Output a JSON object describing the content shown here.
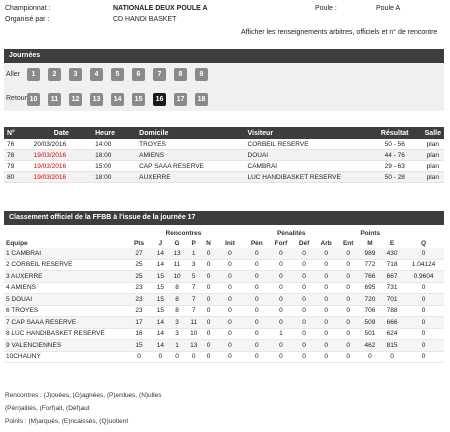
{
  "header": {
    "championnat_label": "Championnat :",
    "championnat_value": "NATIONALE DEUX POULE A",
    "organise_label": "Organisé par :",
    "organise_value": "CD HANDI BASKET",
    "poule_label": "Poule :",
    "poule_value": "Poule A",
    "link_text": "Afficher les renseignements arbitres, officiels et n° de rencontre"
  },
  "journees": {
    "title": "Journées",
    "aller_label": "Aller",
    "retour_label": "Retour",
    "aller": [
      "1",
      "2",
      "3",
      "4",
      "5",
      "6",
      "7",
      "8",
      "9"
    ],
    "retour": [
      "10",
      "11",
      "12",
      "13",
      "14",
      "15",
      "16",
      "17",
      "18"
    ],
    "active": "16"
  },
  "matches": {
    "headers": [
      "N°",
      "Date",
      "Heure",
      "Domicile",
      "Visiteur",
      "Résultat",
      "Salle"
    ],
    "rows": [
      {
        "num": "76",
        "date": "20/03/2016",
        "heure": "14:00",
        "domicile": "TROYES",
        "visiteur": "CORBEIL RESERVE",
        "resultat": "50 - 56",
        "salle": "plan",
        "red": false
      },
      {
        "num": "78",
        "date": "19/03/2016",
        "heure": "18:00",
        "domicile": "AMIENS",
        "visiteur": "DOUAI",
        "resultat": "44 - 76",
        "salle": "plan",
        "red": true
      },
      {
        "num": "79",
        "date": "19/03/2016",
        "heure": "15:00",
        "domicile": "CAP SAAA RESERVE",
        "visiteur": "CAMBRAI",
        "resultat": "29 - 63",
        "salle": "plan",
        "red": true
      },
      {
        "num": "80",
        "date": "19/03/2016",
        "heure": "18:00",
        "domicile": "AUXERRE",
        "visiteur": "LUC HANDIBASKET RESERVE",
        "resultat": "50 - 28",
        "salle": "plan",
        "red": true
      }
    ]
  },
  "classement": {
    "title": "Classement officiel de la FFBB à l'issue de la journée 17",
    "group_headers": {
      "rencontres": "Rencontres",
      "penalites": "Pénalités",
      "points": "Points"
    },
    "headers": [
      "Equipe",
      "Pts",
      "J",
      "G",
      "P",
      "N",
      "Init",
      "Pén",
      "Forf",
      "Déf",
      "Arb",
      "Ent",
      "M",
      "E",
      "Q"
    ],
    "rows": [
      [
        "1 CAMBRAI",
        "27",
        "14",
        "13",
        "1",
        "0",
        "0",
        "0",
        "0",
        "0",
        "0",
        "0",
        "989",
        "430",
        "0"
      ],
      [
        "2 CORBEIL RESERVE",
        "25",
        "14",
        "11",
        "3",
        "0",
        "0",
        "0",
        "0",
        "0",
        "0",
        "0",
        "772",
        "718",
        "1.04124"
      ],
      [
        "3 AUXERRE",
        "25",
        "15",
        "10",
        "5",
        "0",
        "0",
        "0",
        "0",
        "0",
        "0",
        "0",
        "766",
        "667",
        "0.9604"
      ],
      [
        "4 AMIENS",
        "23",
        "15",
        "8",
        "7",
        "0",
        "0",
        "0",
        "0",
        "0",
        "0",
        "0",
        "695",
        "731",
        "0"
      ],
      [
        "5 DOUAI",
        "23",
        "15",
        "8",
        "7",
        "0",
        "0",
        "0",
        "0",
        "0",
        "0",
        "0",
        "720",
        "701",
        "0"
      ],
      [
        "6 TROYES",
        "23",
        "15",
        "8",
        "7",
        "0",
        "0",
        "0",
        "0",
        "0",
        "0",
        "0",
        "706",
        "788",
        "0"
      ],
      [
        "7 CAP SAAA RESERVE",
        "17",
        "14",
        "3",
        "11",
        "0",
        "0",
        "0",
        "0",
        "0",
        "0",
        "0",
        "509",
        "666",
        "0"
      ],
      [
        "8 LUC HANDIBASKET RESERVE",
        "16",
        "14",
        "3",
        "10",
        "0",
        "0",
        "0",
        "1",
        "0",
        "0",
        "0",
        "501",
        "624",
        "0"
      ],
      [
        "9 VALENCIENNES",
        "15",
        "14",
        "1",
        "13",
        "0",
        "0",
        "0",
        "0",
        "0",
        "0",
        "0",
        "462",
        "815",
        "0"
      ],
      [
        "10CHAUNY",
        "0",
        "0",
        "0",
        "0",
        "0",
        "0",
        "0",
        "0",
        "0",
        "0",
        "0",
        "0",
        "0",
        "0"
      ]
    ]
  },
  "legend": {
    "line1": "Rencontres : (J)ouées, (G)agnées, (P)erdues, (N)ulles",
    "line2": "(Pén)alités, (Forf)ait, (Déf)aut",
    "line3": "Points : (M)arqués, (E)ncaissés, (Q)uotient"
  }
}
